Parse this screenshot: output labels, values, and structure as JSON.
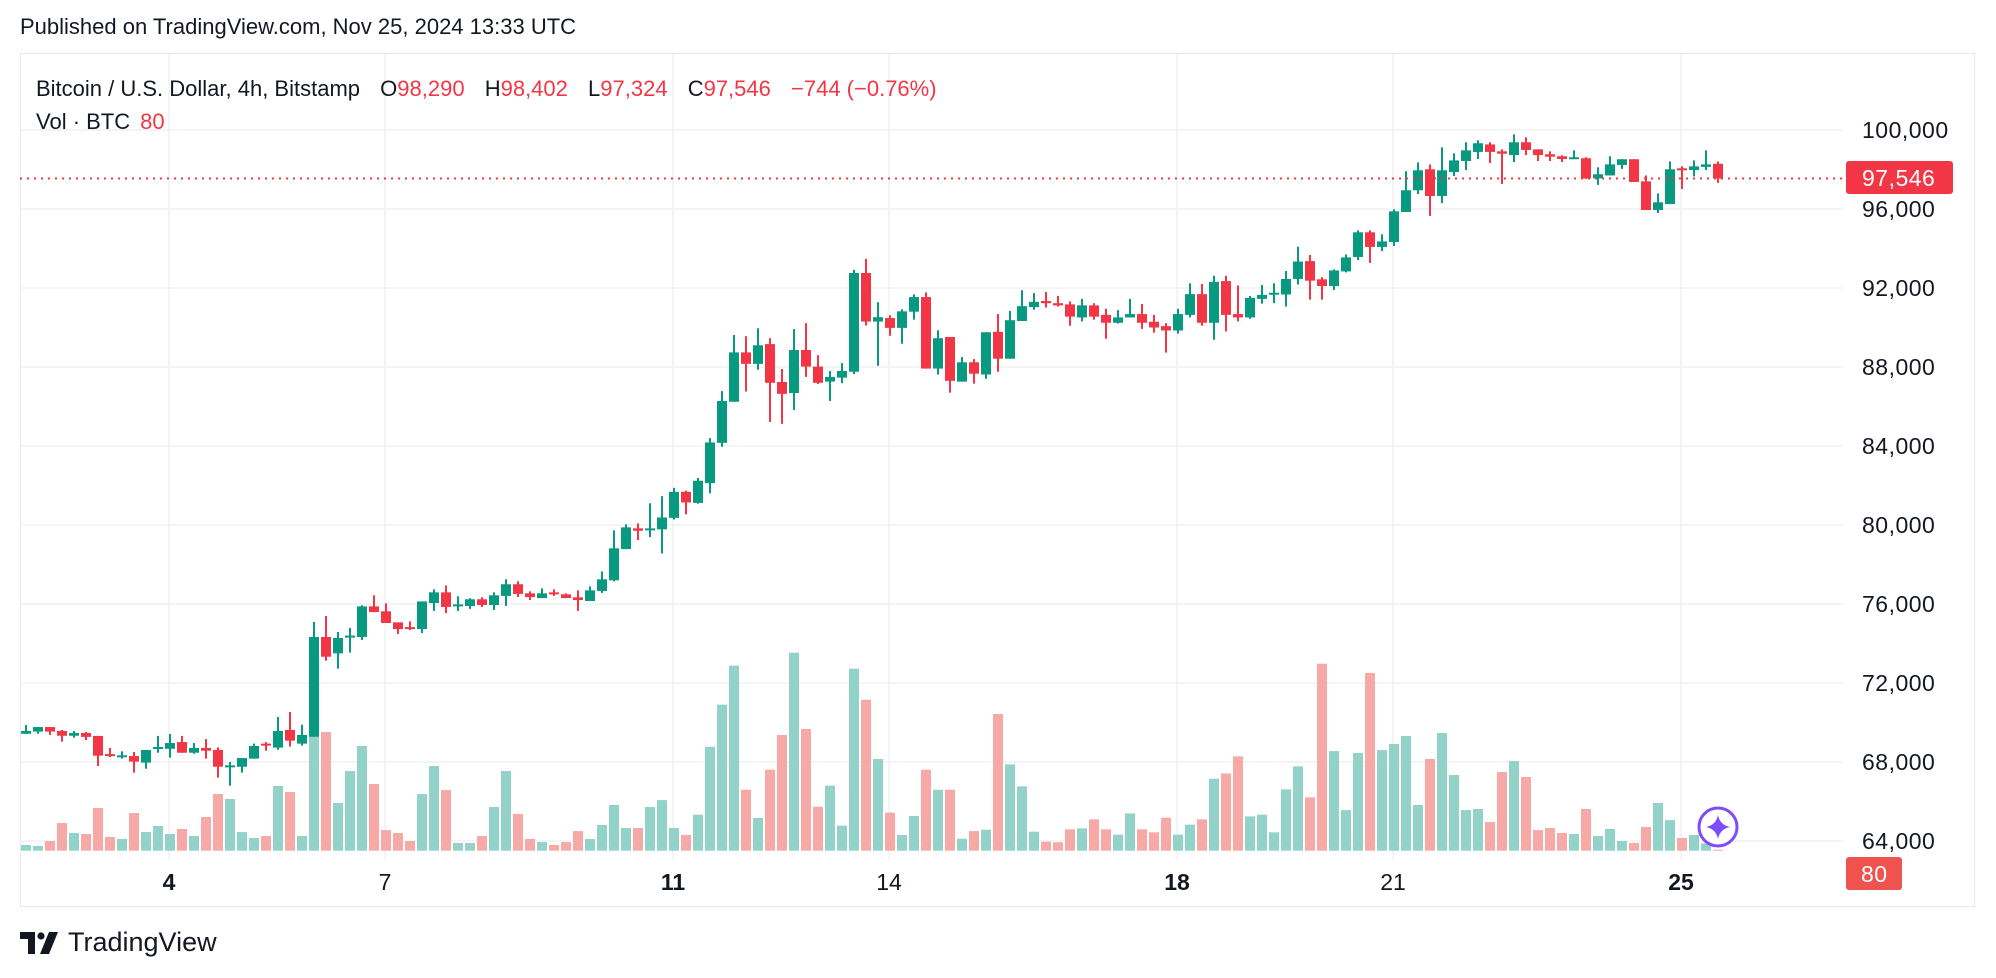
{
  "header": {
    "published": "Published on TradingView.com, Nov 25, 2024 13:33 UTC"
  },
  "legend": {
    "symbol": "Bitcoin / U.S. Dollar, 4h, Bitstamp",
    "open_label": "O",
    "open": "98,290",
    "high_label": "H",
    "high": "98,402",
    "low_label": "L",
    "low": "97,324",
    "close_label": "C",
    "close": "97,546",
    "change": "−744 (−0.76%)",
    "volume_label": "Vol · BTC",
    "volume": "80"
  },
  "brand": {
    "name": "TradingView"
  },
  "colors": {
    "up": "#089981",
    "down": "#f23645",
    "volume_up": "#92d2c8",
    "volume_down": "#f7a9a7",
    "price_tag": "#f23645",
    "volume_tag": "#ef5350",
    "assistant": "#7b4dff"
  },
  "chart_data": {
    "type": "candlestick",
    "title": "Bitcoin / U.S. Dollar, 4h, Bitstamp",
    "interval": "4h",
    "ylim": [
      62000,
      102000
    ],
    "grid": true,
    "y_ticks": [
      "100,000",
      "96,000",
      "92,000",
      "88,000",
      "84,000",
      "80,000",
      "76,000",
      "72,000",
      "68,000",
      "64,000"
    ],
    "y_tick_values": [
      100000,
      96000,
      92000,
      88000,
      84000,
      80000,
      76000,
      72000,
      68000,
      64000
    ],
    "x_ticks": [
      {
        "label": "4",
        "bold": true
      },
      {
        "label": "7",
        "bold": false
      },
      {
        "label": "11",
        "bold": true
      },
      {
        "label": "14",
        "bold": false
      },
      {
        "label": "18",
        "bold": true
      },
      {
        "label": "21",
        "bold": false
      },
      {
        "label": "25",
        "bold": true
      }
    ],
    "last_price": {
      "value": 97546,
      "label": "97,546"
    },
    "last_volume": {
      "value": 80,
      "label": "80"
    },
    "columns": [
      "time",
      "open",
      "high",
      "low",
      "close",
      "volume"
    ],
    "candles": [
      [
        "Nov 2 00:00",
        69430,
        69870,
        69430,
        69570,
        460
      ],
      [
        "Nov 2 04:00",
        69540,
        69770,
        69430,
        69770,
        380
      ],
      [
        "Nov 2 08:00",
        69770,
        69770,
        69370,
        69540,
        780
      ],
      [
        "Nov 2 12:00",
        69570,
        69620,
        69030,
        69330,
        2240
      ],
      [
        "Nov 2 16:00",
        69330,
        69570,
        69230,
        69470,
        1430
      ],
      [
        "Nov 2 20:00",
        69470,
        69520,
        69110,
        69270,
        1350
      ],
      [
        "Nov 3 00:00",
        69320,
        69320,
        67800,
        68320,
        3460
      ],
      [
        "Nov 3 04:00",
        68400,
        68710,
        68250,
        68320,
        1110
      ],
      [
        "Nov 3 08:00",
        68250,
        68540,
        68170,
        68340,
        950
      ],
      [
        "Nov 3 12:00",
        68300,
        68510,
        67460,
        68020,
        3050
      ],
      [
        "Nov 3 16:00",
        67970,
        68610,
        67660,
        68610,
        1510
      ],
      [
        "Nov 3 20:00",
        68670,
        69320,
        68470,
        68760,
        2000
      ],
      [
        "Nov 4 00:00",
        68670,
        69420,
        68220,
        68960,
        1350
      ],
      [
        "Nov 4 04:00",
        69010,
        69320,
        68470,
        68470,
        1760
      ],
      [
        "Nov 4 08:00",
        68470,
        68960,
        68420,
        68710,
        1190
      ],
      [
        "Nov 4 12:00",
        68710,
        69160,
        68170,
        68570,
        2730
      ],
      [
        "Nov 4 16:00",
        68610,
        68740,
        67210,
        67760,
        4590
      ],
      [
        "Nov 4 20:00",
        67760,
        68000,
        66800,
        67830,
        4190
      ],
      [
        "Nov 5 00:00",
        67760,
        68200,
        67460,
        68200,
        1510
      ],
      [
        "Nov 5 04:00",
        68170,
        68930,
        68170,
        68810,
        1030
      ],
      [
        "Nov 5 08:00",
        68930,
        69010,
        68570,
        68830,
        1190
      ],
      [
        "Nov 5 12:00",
        68730,
        70280,
        68620,
        69570,
        5240
      ],
      [
        "Nov 5 16:00",
        69620,
        70530,
        68780,
        69080,
        4750
      ],
      [
        "Nov 5 20:00",
        68930,
        69890,
        68830,
        69370,
        1190
      ],
      [
        "Nov 6 00:00",
        69280,
        75090,
        69280,
        74330,
        9320
      ],
      [
        "Nov 6 04:00",
        74330,
        75390,
        73130,
        73330,
        9610
      ],
      [
        "Nov 6 08:00",
        73500,
        74580,
        72730,
        74280,
        3860
      ],
      [
        "Nov 6 12:00",
        74330,
        74790,
        73540,
        74400,
        6450
      ],
      [
        "Nov 6 16:00",
        74330,
        75930,
        74180,
        75880,
        8480
      ],
      [
        "Nov 6 20:00",
        75880,
        76440,
        75590,
        75590,
        5400
      ],
      [
        "Nov 7 00:00",
        75630,
        76030,
        75040,
        75040,
        1670
      ],
      [
        "Nov 7 04:00",
        75070,
        75070,
        74480,
        74730,
        1430
      ],
      [
        "Nov 7 08:00",
        74830,
        75120,
        74680,
        74730,
        780
      ],
      [
        "Nov 7 12:00",
        74730,
        76130,
        74530,
        76130,
        4590
      ],
      [
        "Nov 7 16:00",
        76050,
        76740,
        75650,
        76590,
        6860
      ],
      [
        "Nov 7 20:00",
        76590,
        76940,
        75540,
        75850,
        4910
      ],
      [
        "Nov 8 00:00",
        75920,
        76390,
        75650,
        75980,
        620
      ],
      [
        "Nov 8 04:00",
        75900,
        76290,
        75750,
        76240,
        620
      ],
      [
        "Nov 8 08:00",
        76240,
        76340,
        75850,
        75950,
        1190
      ],
      [
        "Nov 8 12:00",
        75950,
        76590,
        75700,
        76440,
        3540
      ],
      [
        "Nov 8 16:00",
        76410,
        77250,
        75900,
        77000,
        6450
      ],
      [
        "Nov 8 20:00",
        77000,
        77150,
        76350,
        76510,
        2970
      ],
      [
        "Nov 9 00:00",
        76540,
        76640,
        76200,
        76350,
        950
      ],
      [
        "Nov 9 04:00",
        76300,
        76790,
        76300,
        76540,
        700
      ],
      [
        "Nov 9 08:00",
        76590,
        76740,
        76410,
        76490,
        460
      ],
      [
        "Nov 9 12:00",
        76490,
        76540,
        76300,
        76300,
        700
      ],
      [
        "Nov 9 16:00",
        76340,
        76690,
        75650,
        76200,
        1590
      ],
      [
        "Nov 9 20:00",
        76150,
        76890,
        76150,
        76690,
        950
      ],
      [
        "Nov 10 00:00",
        76660,
        77650,
        76560,
        77250,
        2080
      ],
      [
        "Nov 10 04:00",
        77200,
        79730,
        77150,
        78820,
        3700
      ],
      [
        "Nov 10 08:00",
        78780,
        80030,
        78780,
        79880,
        1840
      ],
      [
        "Nov 10 12:00",
        79830,
        80080,
        79240,
        79710,
        1840
      ],
      [
        "Nov 10 16:00",
        79750,
        81100,
        79390,
        79830,
        3540
      ],
      [
        "Nov 10 20:00",
        79780,
        81460,
        78560,
        80380,
        4100
      ],
      [
        "Nov 11 00:00",
        80360,
        81880,
        80280,
        81680,
        1840
      ],
      [
        "Nov 11 04:00",
        81680,
        81740,
        80540,
        81140,
        1270
      ],
      [
        "Nov 11 08:00",
        81120,
        82380,
        81080,
        82240,
        2920
      ],
      [
        "Nov 11 12:00",
        82120,
        84400,
        81600,
        84180,
        8420
      ],
      [
        "Nov 11 16:00",
        84160,
        86780,
        83960,
        86280,
        11830
      ],
      [
        "Nov 11 20:00",
        86240,
        89620,
        86240,
        88740,
        14990
      ],
      [
        "Nov 12 00:00",
        88740,
        89560,
        86760,
        88160,
        4940
      ],
      [
        "Nov 12 04:00",
        88160,
        89960,
        87860,
        89100,
        2650
      ],
      [
        "Nov 12 08:00",
        89160,
        89460,
        85220,
        87200,
        6560
      ],
      [
        "Nov 12 12:00",
        87240,
        87900,
        85120,
        86640,
        9370
      ],
      [
        "Nov 12 16:00",
        86680,
        89920,
        85820,
        88860,
        16040
      ],
      [
        "Nov 12 20:00",
        88860,
        90220,
        87500,
        88020,
        9860
      ],
      [
        "Nov 13 00:00",
        88020,
        88600,
        87140,
        87200,
        3560
      ],
      [
        "Nov 13 04:00",
        87260,
        87800,
        86280,
        87500,
        5270
      ],
      [
        "Nov 13 08:00",
        87460,
        88200,
        87180,
        87800,
        2030
      ],
      [
        "Nov 13 12:00",
        87760,
        92920,
        87640,
        92760,
        14740
      ],
      [
        "Nov 13 16:00",
        92760,
        93480,
        90100,
        90300,
        12230
      ],
      [
        "Nov 13 20:00",
        90300,
        91280,
        88060,
        90520,
        7430
      ],
      [
        "Nov 14 00:00",
        90480,
        90620,
        89580,
        89980,
        3080
      ],
      [
        "Nov 14 04:00",
        89980,
        90920,
        89180,
        90820,
        1270
      ],
      [
        "Nov 14 08:00",
        90800,
        91680,
        90400,
        91540,
        2810
      ],
      [
        "Nov 14 12:00",
        91540,
        91780,
        87920,
        87920,
        6560
      ],
      [
        "Nov 14 16:00",
        87920,
        89860,
        87620,
        89460,
        4940
      ],
      [
        "Nov 14 20:00",
        89520,
        89520,
        86700,
        87300,
        4940
      ],
      [
        "Nov 15 00:00",
        87260,
        88500,
        87260,
        88240,
        970
      ],
      [
        "Nov 15 04:00",
        88240,
        88400,
        87160,
        87660,
        1590
      ],
      [
        "Nov 15 08:00",
        87620,
        89760,
        87400,
        89760,
        1700
      ],
      [
        "Nov 15 12:00",
        89780,
        90680,
        87760,
        88420,
        11070
      ],
      [
        "Nov 15 16:00",
        88420,
        90840,
        88420,
        90370,
        6990
      ],
      [
        "Nov 15 20:00",
        90330,
        91890,
        90330,
        91080,
        5210
      ],
      [
        "Nov 16 00:00",
        91030,
        91740,
        90900,
        91300,
        1540
      ],
      [
        "Nov 16 04:00",
        91340,
        91800,
        91010,
        91230,
        730
      ],
      [
        "Nov 16 08:00",
        91230,
        91600,
        91060,
        91120,
        680
      ],
      [
        "Nov 16 12:00",
        91170,
        91320,
        90090,
        90550,
        1730
      ],
      [
        "Nov 16 16:00",
        90510,
        91450,
        90310,
        91120,
        1810
      ],
      [
        "Nov 16 20:00",
        91120,
        91230,
        90400,
        90550,
        2540
      ],
      [
        "Nov 17 00:00",
        90640,
        90950,
        89430,
        90240,
        1730
      ],
      [
        "Nov 17 04:00",
        90240,
        90880,
        90200,
        90510,
        1300
      ],
      [
        "Nov 17 08:00",
        90510,
        91450,
        90510,
        90680,
        3020
      ],
      [
        "Nov 17 12:00",
        90680,
        91190,
        89930,
        90240,
        1730
      ],
      [
        "Nov 17 16:00",
        90290,
        90640,
        89740,
        90000,
        1490
      ],
      [
        "Nov 17 20:00",
        90070,
        90220,
        88730,
        89850,
        2670
      ],
      [
        "Nov 18 00:00",
        89850,
        90950,
        89690,
        90680,
        1300
      ],
      [
        "Nov 18 04:00",
        90640,
        92240,
        90510,
        91690,
        2110
      ],
      [
        "Nov 18 08:00",
        91690,
        92200,
        90090,
        90240,
        2540
      ],
      [
        "Nov 18 12:00",
        90240,
        92620,
        89380,
        92310,
        5830
      ],
      [
        "Nov 18 16:00",
        92350,
        92620,
        89800,
        90640,
        6260
      ],
      [
        "Nov 18 20:00",
        90680,
        92130,
        90310,
        90510,
        7640
      ],
      [
        "Nov 19 00:00",
        90510,
        91600,
        90440,
        91500,
        2780
      ],
      [
        "Nov 19 04:00",
        91450,
        92150,
        91210,
        91650,
        2920
      ],
      [
        "Nov 19 08:00",
        91690,
        92240,
        91230,
        91760,
        1490
      ],
      [
        "Nov 19 12:00",
        91670,
        92860,
        91060,
        92460,
        4970
      ],
      [
        "Nov 19 16:00",
        92460,
        94090,
        92180,
        93340,
        6830
      ],
      [
        "Nov 19 20:00",
        93360,
        93670,
        91410,
        92370,
        4320
      ],
      [
        "Nov 20 00:00",
        92440,
        92550,
        91410,
        92100,
        15150
      ],
      [
        "Nov 20 04:00",
        92100,
        92940,
        91900,
        92890,
        8070
      ],
      [
        "Nov 20 08:00",
        92840,
        93700,
        92790,
        93550,
        3290
      ],
      [
        "Nov 20 12:00",
        93570,
        94920,
        93420,
        94820,
        7910
      ],
      [
        "Nov 20 16:00",
        94820,
        94920,
        93270,
        94080,
        14390
      ],
      [
        "Nov 20 20:00",
        94080,
        94720,
        93870,
        94360,
        8150
      ],
      [
        "Nov 21 00:00",
        94330,
        95980,
        94130,
        95880,
        8640
      ],
      [
        "Nov 21 04:00",
        95850,
        97910,
        95850,
        96950,
        9290
      ],
      [
        "Nov 21 08:00",
        96950,
        98360,
        96760,
        97960,
        3700
      ],
      [
        "Nov 21 12:00",
        98010,
        98260,
        95650,
        96660,
        7430
      ],
      [
        "Nov 21 16:00",
        96660,
        99120,
        96300,
        97960,
        9530
      ],
      [
        "Nov 21 20:00",
        97870,
        98820,
        97670,
        98460,
        6130
      ],
      [
        "Nov 22 00:00",
        98430,
        99380,
        97970,
        98970,
        3290
      ],
      [
        "Nov 22 04:00",
        98890,
        99480,
        98530,
        99330,
        3380
      ],
      [
        "Nov 22 08:00",
        99270,
        99380,
        98330,
        98890,
        2320
      ],
      [
        "Nov 22 12:00",
        98920,
        99020,
        97270,
        98800,
        6370
      ],
      [
        "Nov 22 16:00",
        98730,
        99780,
        98380,
        99380,
        7260
      ],
      [
        "Nov 22 20:00",
        99380,
        99630,
        98730,
        98990,
        5970
      ],
      [
        "Nov 23 00:00",
        99020,
        99020,
        98430,
        98730,
        1670
      ],
      [
        "Nov 23 04:00",
        98770,
        98920,
        98430,
        98650,
        1840
      ],
      [
        "Nov 23 08:00",
        98670,
        98720,
        98380,
        98530,
        1430
      ],
      [
        "Nov 23 12:00",
        98530,
        98970,
        98530,
        98620,
        1350
      ],
      [
        "Nov 23 16:00",
        98570,
        98620,
        97520,
        97550,
        3380
      ],
      [
        "Nov 23 20:00",
        97550,
        98110,
        97220,
        97760,
        1190
      ],
      [
        "Nov 24 00:00",
        97700,
        98670,
        97700,
        98260,
        1760
      ],
      [
        "Nov 24 04:00",
        98230,
        98520,
        98030,
        98520,
        780
      ],
      [
        "Nov 24 08:00",
        98520,
        98520,
        97370,
        97370,
        620
      ],
      [
        "Nov 24 12:00",
        97400,
        97700,
        95950,
        95950,
        1920
      ],
      [
        "Nov 24 16:00",
        95950,
        96790,
        95800,
        96340,
        3860
      ],
      [
        "Nov 24 20:00",
        96250,
        98410,
        96250,
        98010,
        2480
      ],
      [
        "Nov 25 00:00",
        98060,
        98160,
        97010,
        97970,
        1030
      ],
      [
        "Nov 25 04:00",
        97970,
        98460,
        97650,
        98160,
        1270
      ],
      [
        "Nov 25 08:00",
        98130,
        98970,
        97970,
        98260,
        590
      ],
      [
        "Nov 25 12:00",
        98290,
        98402,
        97324,
        97546,
        80
      ]
    ]
  }
}
